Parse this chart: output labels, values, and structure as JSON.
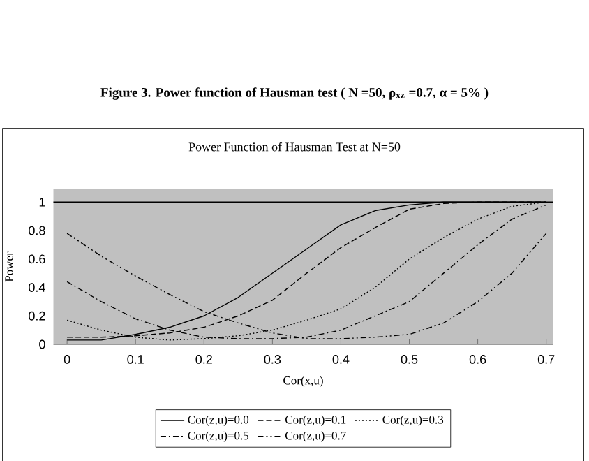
{
  "chart_data": {
    "type": "line",
    "title": "Power Function of Hausman Test at N=50",
    "xlabel": "Cor(x,u)",
    "ylabel": "Power",
    "annotations": [
      "Figure 3. Power function of Hausman test ( N =50,  ρ$_{xz}$ =0.7,  α = 5% )"
    ],
    "x": [
      0,
      0.05,
      0.1,
      0.15,
      0.2,
      0.25,
      0.3,
      0.35,
      0.4,
      0.45,
      0.5,
      0.55,
      0.6,
      0.65,
      0.7
    ],
    "series": [
      {
        "name": "Cor(z,u)=0.0",
        "color": "#000000",
        "line_style": "solid",
        "values": [
          0.03,
          0.03,
          0.07,
          0.12,
          0.2,
          0.33,
          0.5,
          0.67,
          0.84,
          0.94,
          0.98,
          1.0,
          1.0,
          1.0,
          1.0
        ]
      },
      {
        "name": "Cor(z,u)=0.1",
        "color": "#000000",
        "line_style": "dashed",
        "values": [
          0.05,
          0.05,
          0.06,
          0.08,
          0.12,
          0.2,
          0.31,
          0.5,
          0.68,
          0.82,
          0.95,
          0.99,
          1.0,
          1.0,
          1.0
        ]
      },
      {
        "name": "Cor(z,u)=0.3",
        "color": "#000000",
        "line_style": "dotted",
        "values": [
          0.17,
          0.1,
          0.05,
          0.03,
          0.04,
          0.06,
          0.1,
          0.17,
          0.25,
          0.4,
          0.6,
          0.75,
          0.88,
          0.97,
          1.0
        ]
      },
      {
        "name": "Cor(z,u)=0.5",
        "color": "#000000",
        "line_style": "dashdot",
        "values": [
          0.44,
          0.3,
          0.18,
          0.1,
          0.05,
          0.04,
          0.04,
          0.05,
          0.1,
          0.2,
          0.3,
          0.5,
          0.7,
          0.88,
          0.98
        ]
      },
      {
        "name": "Cor(z,u)=0.7",
        "color": "#000000",
        "line_style": "dashdotdot",
        "values": [
          0.78,
          0.62,
          0.48,
          0.35,
          0.23,
          0.15,
          0.08,
          0.04,
          0.04,
          0.05,
          0.07,
          0.15,
          0.3,
          0.5,
          0.78
        ]
      }
    ],
    "xlim": [
      -0.02,
      0.71
    ],
    "ylim": [
      0,
      1.09
    ],
    "xticks": [
      0,
      0.1,
      0.2,
      0.3,
      0.4,
      0.5,
      0.6,
      0.7
    ],
    "yticks": [
      0,
      0.2,
      0.4,
      0.6,
      0.8,
      1
    ],
    "ref_lines": [
      {
        "axis": "y",
        "value": 1,
        "color": "#000000"
      }
    ],
    "legend": "bottom",
    "grid": false,
    "marker": "none"
  }
}
